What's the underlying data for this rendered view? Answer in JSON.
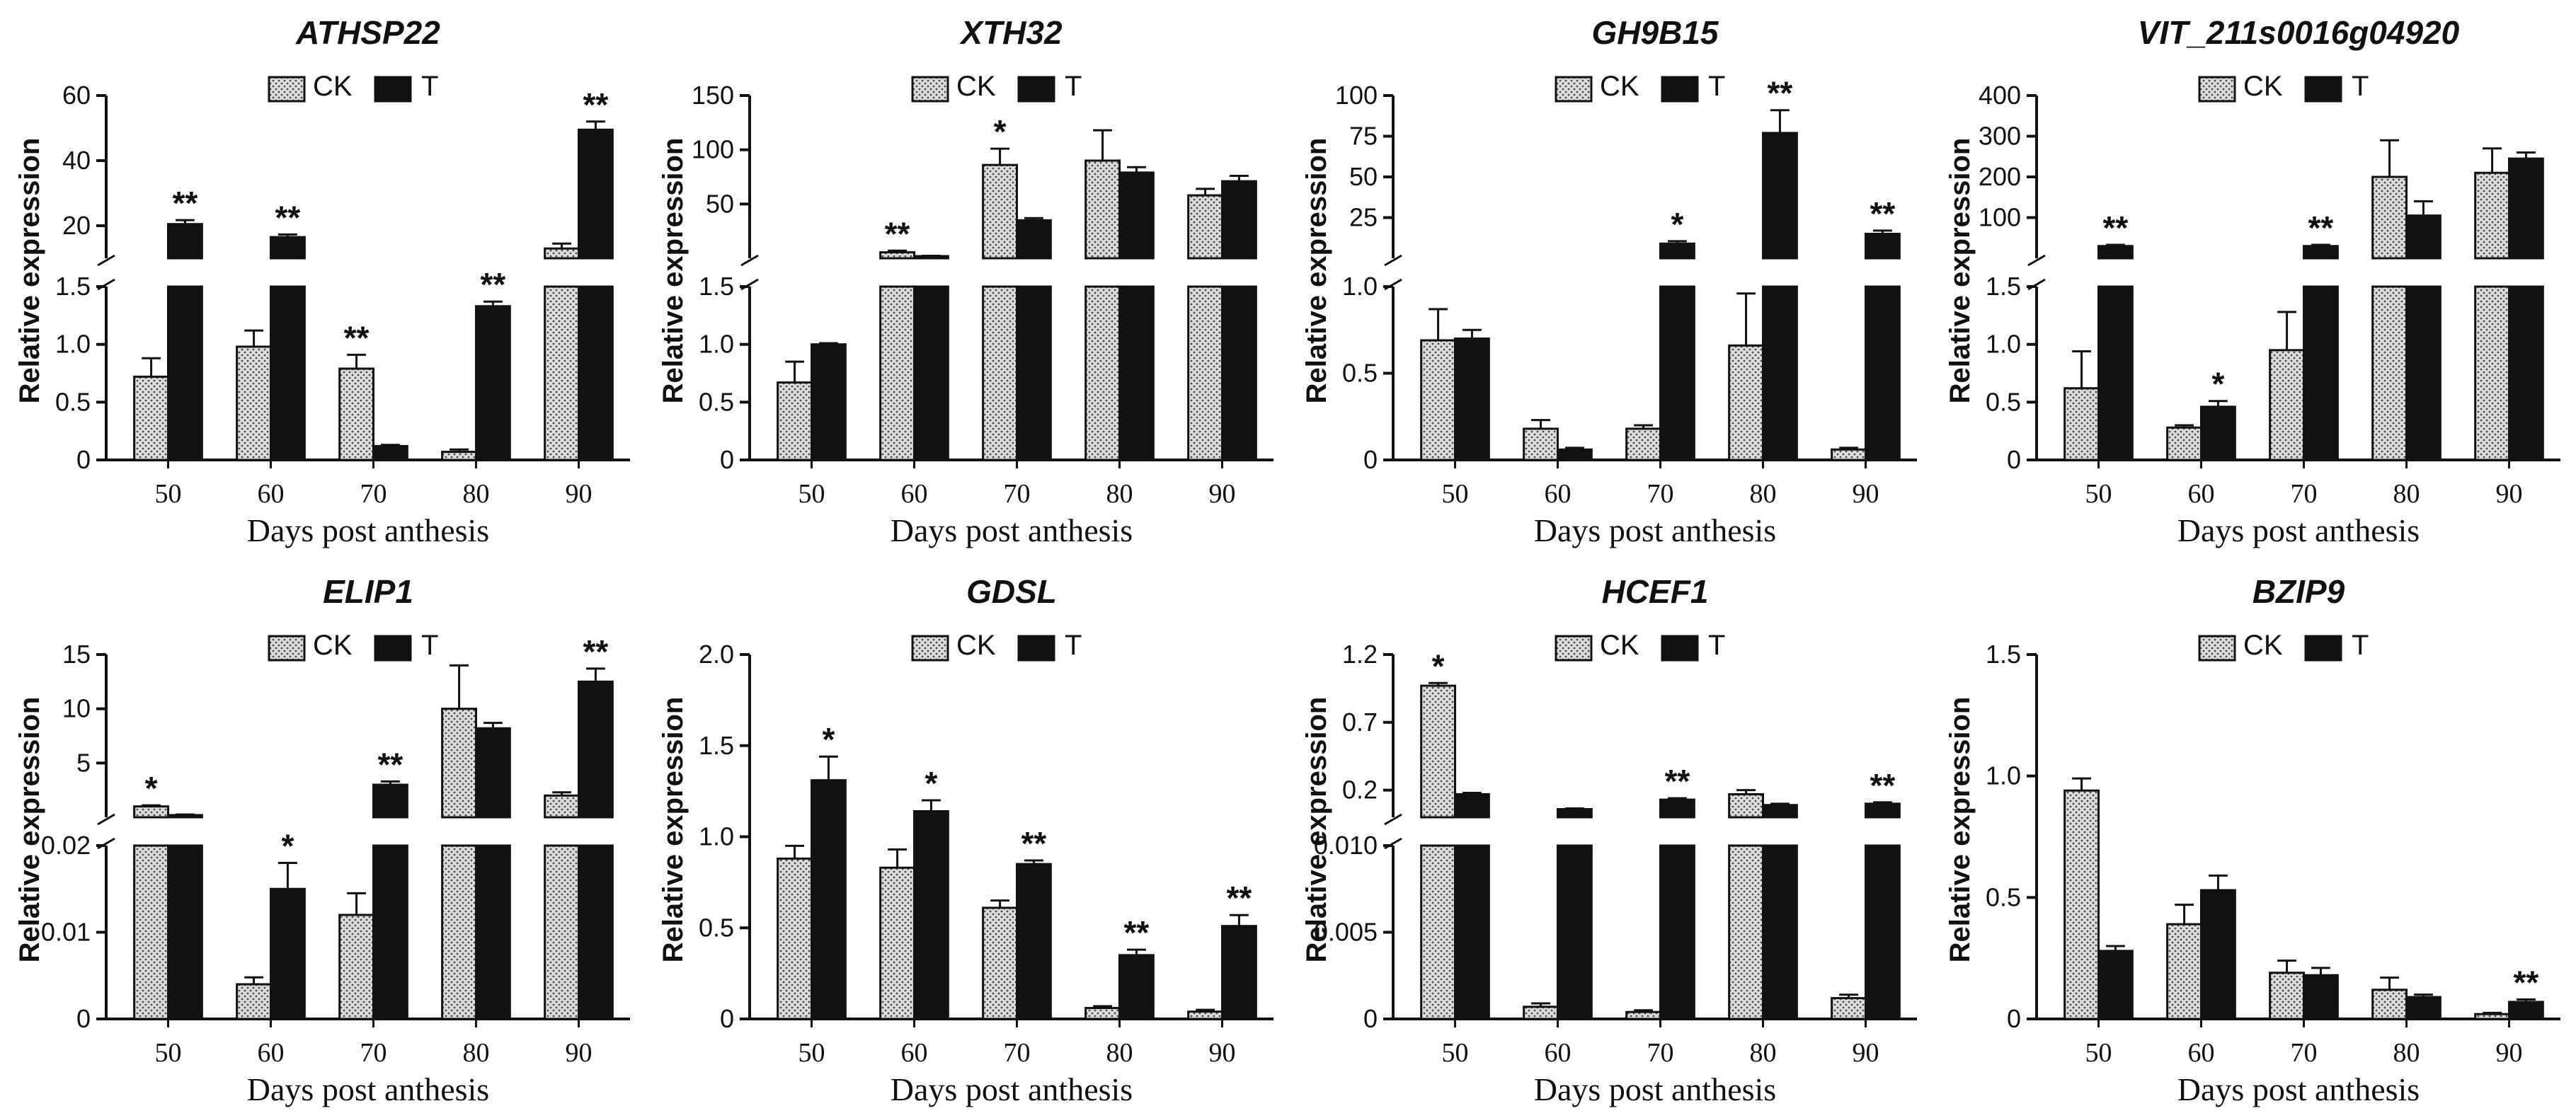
{
  "colors": {
    "t_fill": "#111111",
    "ck_fill": "#dcdcdc",
    "ck_dot": "#4a4a4a",
    "axis": "#111111"
  },
  "chart_data": [
    {
      "type": "bar",
      "title": "ATHSP22",
      "xlabel": "Days post anthesis",
      "ylabel": "Relative expression",
      "categories": [
        "50",
        "60",
        "70",
        "80",
        "90"
      ],
      "legend": [
        "CK",
        "T"
      ],
      "axis_break": true,
      "upper_ylim": [
        10,
        60
      ],
      "upper_ticks": [
        "20",
        "40",
        "60"
      ],
      "lower_ylim": [
        0,
        1.5
      ],
      "lower_ticks": [
        "0",
        "0.5",
        "1.0",
        "1.5"
      ],
      "series": [
        {
          "name": "CK",
          "values": [
            0.72,
            0.98,
            0.79,
            0.07,
            13
          ],
          "errors": [
            0.16,
            0.14,
            0.12,
            0.02,
            1.5
          ]
        },
        {
          "name": "T",
          "values": [
            20.5,
            16.5,
            0.12,
            1.33,
            49.5
          ],
          "errors": [
            1.2,
            0.8,
            0.01,
            0.04,
            2.5
          ]
        }
      ],
      "significance": [
        [
          "",
          "**"
        ],
        [
          "",
          "**"
        ],
        [
          "**",
          ""
        ],
        [
          "",
          "**"
        ],
        [
          "",
          "**"
        ]
      ]
    },
    {
      "type": "bar",
      "title": "XTH32",
      "xlabel": "Days post anthesis",
      "ylabel": "Relative expression",
      "categories": [
        "50",
        "60",
        "70",
        "80",
        "90"
      ],
      "legend": [
        "CK",
        "T"
      ],
      "axis_break": true,
      "upper_ylim": [
        0,
        150
      ],
      "upper_ticks": [
        "50",
        "100",
        "150"
      ],
      "lower_ylim": [
        0,
        1.5
      ],
      "lower_ticks": [
        "0",
        "0.5",
        "1.0",
        "1.5"
      ],
      "series": [
        {
          "name": "CK",
          "values": [
            0.67,
            5.5,
            86,
            90,
            58
          ],
          "errors": [
            0.18,
            1.5,
            15,
            28,
            6
          ]
        },
        {
          "name": "T",
          "values": [
            1.0,
            2.0,
            35,
            79,
            71
          ],
          "errors": [
            0.01,
            0.3,
            2,
            5,
            5
          ]
        }
      ],
      "significance": [
        [
          "",
          ""
        ],
        [
          "**",
          ""
        ],
        [
          "*",
          ""
        ],
        [
          "",
          ""
        ],
        [
          "",
          ""
        ]
      ]
    },
    {
      "type": "bar",
      "title": "GH9B15",
      "xlabel": "Days post anthesis",
      "ylabel": "Relative expression",
      "categories": [
        "50",
        "60",
        "70",
        "80",
        "90"
      ],
      "legend": [
        "CK",
        "T"
      ],
      "axis_break": true,
      "upper_ylim": [
        0,
        100
      ],
      "upper_ticks": [
        "25",
        "50",
        "75",
        "100"
      ],
      "lower_ylim": [
        0,
        1.0
      ],
      "lower_ticks": [
        "0",
        "0.5",
        "1.0"
      ],
      "series": [
        {
          "name": "CK",
          "values": [
            0.69,
            0.18,
            0.18,
            0.66,
            0.06
          ],
          "errors": [
            0.18,
            0.05,
            0.02,
            0.3,
            0.01
          ]
        },
        {
          "name": "T",
          "values": [
            0.7,
            0.06,
            9,
            77,
            15
          ],
          "errors": [
            0.05,
            0.01,
            1.5,
            14,
            2
          ]
        }
      ],
      "significance": [
        [
          "",
          ""
        ],
        [
          "",
          ""
        ],
        [
          "",
          "*"
        ],
        [
          "",
          "**"
        ],
        [
          "",
          "**"
        ]
      ]
    },
    {
      "type": "bar",
      "title": "VIT_211s0016g04920",
      "xlabel": "Days post anthesis",
      "ylabel": "Relative expression",
      "categories": [
        "50",
        "60",
        "70",
        "80",
        "90"
      ],
      "legend": [
        "CK",
        "T"
      ],
      "axis_break": true,
      "upper_ylim": [
        0,
        400
      ],
      "upper_ticks": [
        "100",
        "200",
        "300",
        "400"
      ],
      "lower_ylim": [
        0,
        1.5
      ],
      "lower_ticks": [
        "0",
        "0.5",
        "1.0",
        "1.5"
      ],
      "series": [
        {
          "name": "CK",
          "values": [
            0.62,
            0.28,
            0.95,
            200,
            210
          ],
          "errors": [
            0.32,
            0.02,
            0.33,
            90,
            60
          ]
        },
        {
          "name": "T",
          "values": [
            30,
            0.46,
            30,
            105,
            245
          ],
          "errors": [
            3,
            0.05,
            3,
            35,
            15
          ]
        }
      ],
      "significance": [
        [
          "",
          "**"
        ],
        [
          "",
          "*"
        ],
        [
          "",
          "**"
        ],
        [
          "",
          ""
        ],
        [
          "",
          ""
        ]
      ]
    },
    {
      "type": "bar",
      "title": "ELIP1",
      "xlabel": "Days post anthesis",
      "ylabel": "Relative expression",
      "categories": [
        "50",
        "60",
        "70",
        "80",
        "90"
      ],
      "legend": [
        "CK",
        "T"
      ],
      "axis_break": true,
      "upper_ylim": [
        0,
        15
      ],
      "upper_ticks": [
        "5",
        "10",
        "15"
      ],
      "lower_ylim": [
        0,
        0.02
      ],
      "lower_ticks": [
        "0",
        "0.01",
        "0.02"
      ],
      "series": [
        {
          "name": "CK",
          "values": [
            1.0,
            0.004,
            0.012,
            10,
            2.0
          ],
          "errors": [
            0.1,
            0.0008,
            0.0025,
            4,
            0.3
          ]
        },
        {
          "name": "T",
          "values": [
            0.2,
            0.015,
            3.0,
            8.2,
            12.5
          ],
          "errors": [
            0.05,
            0.003,
            0.3,
            0.5,
            1.2
          ]
        }
      ],
      "significance": [
        [
          "*",
          ""
        ],
        [
          "",
          "*"
        ],
        [
          "",
          "**"
        ],
        [
          "",
          ""
        ],
        [
          "",
          "**"
        ]
      ]
    },
    {
      "type": "bar",
      "title": "GDSL",
      "xlabel": "Days post anthesis",
      "ylabel": "Relative expression",
      "categories": [
        "50",
        "60",
        "70",
        "80",
        "90"
      ],
      "legend": [
        "CK",
        "T"
      ],
      "axis_break": false,
      "ylim": [
        0,
        2.0
      ],
      "yticks": [
        "0",
        "0.5",
        "1.0",
        "1.5",
        "2.0"
      ],
      "series": [
        {
          "name": "CK",
          "values": [
            0.88,
            0.83,
            0.61,
            0.06,
            0.04
          ],
          "errors": [
            0.07,
            0.1,
            0.04,
            0.01,
            0.01
          ]
        },
        {
          "name": "T",
          "values": [
            1.31,
            1.14,
            0.85,
            0.35,
            0.51
          ],
          "errors": [
            0.13,
            0.06,
            0.02,
            0.03,
            0.06
          ]
        }
      ],
      "significance": [
        [
          "",
          "*"
        ],
        [
          "",
          "*"
        ],
        [
          "",
          "**"
        ],
        [
          "",
          "**"
        ],
        [
          "",
          "**"
        ]
      ]
    },
    {
      "type": "bar",
      "title": "HCEF1",
      "xlabel": "Days post anthesis",
      "ylabel": "Relative expression",
      "categories": [
        "50",
        "60",
        "70",
        "80",
        "90"
      ],
      "legend": [
        "CK",
        "T"
      ],
      "axis_break": true,
      "upper_ylim": [
        0,
        1.2
      ],
      "upper_ticks": [
        "0.2",
        "0.7",
        "1.2"
      ],
      "lower_ylim": [
        0,
        0.01
      ],
      "lower_ticks": [
        "0",
        "0.005",
        "0.010"
      ],
      "series": [
        {
          "name": "CK",
          "values": [
            0.97,
            0.0007,
            0.0004,
            0.17,
            0.0012
          ],
          "errors": [
            0.02,
            0.0002,
            0.0001,
            0.03,
            0.0002
          ]
        },
        {
          "name": "T",
          "values": [
            0.17,
            0.06,
            0.13,
            0.09,
            0.1
          ],
          "errors": [
            0.01,
            0.005,
            0.01,
            0.01,
            0.01
          ]
        }
      ],
      "significance": [
        [
          "*",
          ""
        ],
        [
          "",
          ""
        ],
        [
          "",
          "**"
        ],
        [
          "",
          ""
        ],
        [
          "",
          "**"
        ]
      ]
    },
    {
      "type": "bar",
      "title": "BZIP9",
      "xlabel": "Days post anthesis",
      "ylabel": "Relative expression",
      "categories": [
        "50",
        "60",
        "70",
        "80",
        "90"
      ],
      "legend": [
        "CK",
        "T"
      ],
      "axis_break": false,
      "ylim": [
        0,
        1.5
      ],
      "yticks": [
        "0",
        "0.5",
        "1.0",
        "1.5"
      ],
      "series": [
        {
          "name": "CK",
          "values": [
            0.94,
            0.39,
            0.19,
            0.12,
            0.02
          ],
          "errors": [
            0.05,
            0.08,
            0.05,
            0.05,
            0.005
          ]
        },
        {
          "name": "T",
          "values": [
            0.28,
            0.53,
            0.18,
            0.09,
            0.07
          ],
          "errors": [
            0.02,
            0.06,
            0.03,
            0.01,
            0.01
          ]
        }
      ],
      "significance": [
        [
          "",
          ""
        ],
        [
          "",
          ""
        ],
        [
          "",
          ""
        ],
        [
          "",
          ""
        ],
        [
          "",
          "**"
        ]
      ]
    }
  ]
}
